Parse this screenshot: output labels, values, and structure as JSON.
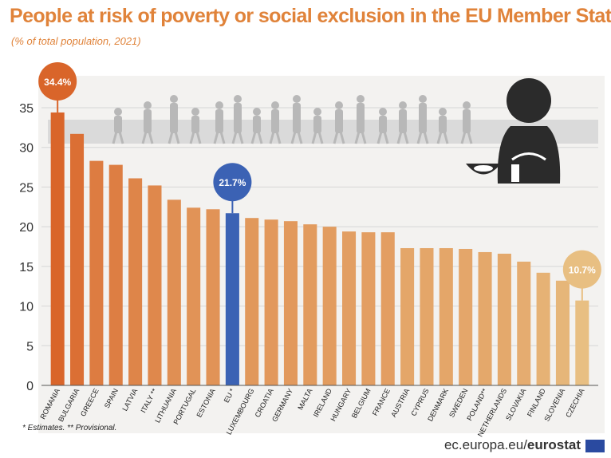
{
  "title": "People at risk of poverty or social exclusion in the EU Member States",
  "subtitle": "(% of total population, 2021)",
  "footnote": "* Estimates. ** Provisional.",
  "source_plain": "ec.europa.eu/",
  "source_bold": "eurostat",
  "colors": {
    "bar_high": "#d9652a",
    "bar_low": "#e8bf82",
    "eu_bar": "#3b62b4",
    "callout_high": "#d9652a",
    "callout_eu": "#3b62b4",
    "callout_low": "#e8bf82",
    "title": "#e0833a"
  },
  "chart_data": {
    "type": "bar",
    "title": "People at risk of poverty or social exclusion in the EU Member States",
    "subtitle": "(% of total population, 2021)",
    "ylim": [
      0,
      35
    ],
    "yticks": [
      0,
      5,
      10,
      15,
      20,
      25,
      30,
      35
    ],
    "grid": true,
    "categories": [
      "ROMANIA",
      "BULGARIA",
      "GREECE",
      "SPAIN",
      "LATVIA",
      "ITALY **",
      "LITHUANIA",
      "PORTUGAL",
      "ESTONIA",
      "EU *",
      "LUXEMBOURG",
      "CROATIA",
      "GERMANY",
      "MALTA",
      "IRELAND",
      "HUNGARY",
      "BELGIUM",
      "FRANCE",
      "AUSTRIA",
      "CYPRUS",
      "DENMARK",
      "SWEDEN",
      "POLAND**",
      "NETHERLANDS",
      "SLOVAKIA",
      "FINLAND",
      "SLOVENIA",
      "CZECHIA"
    ],
    "values": [
      34.4,
      31.7,
      28.3,
      27.8,
      26.1,
      25.2,
      23.4,
      22.4,
      22.2,
      21.7,
      21.1,
      20.9,
      20.7,
      20.3,
      20.0,
      19.4,
      19.3,
      19.3,
      17.3,
      17.3,
      17.3,
      17.2,
      16.8,
      16.6,
      15.6,
      14.2,
      13.2,
      10.7
    ],
    "highlight_index": 9,
    "callouts": [
      {
        "index": 0,
        "label": "34.4%",
        "style": "high"
      },
      {
        "index": 9,
        "label": "21.7%",
        "style": "eu"
      },
      {
        "index": 27,
        "label": "10.7%",
        "style": "low"
      }
    ]
  }
}
